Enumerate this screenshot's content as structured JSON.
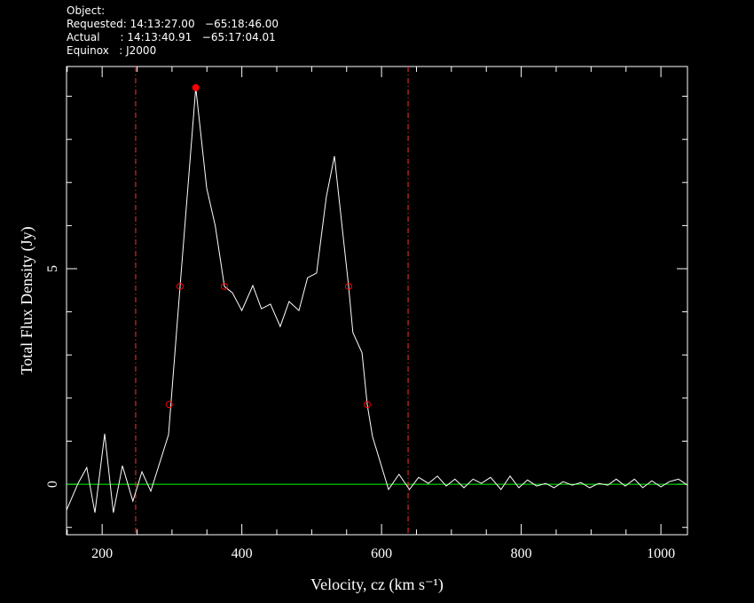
{
  "chart_data": {
    "type": "line",
    "header": [
      "Object:",
      "Requested: 14:13:27.00   −65:18:46.00",
      "Actual      : 14:13:40.91   −65:17:04.01",
      "Equinox   : J2000"
    ],
    "xlabel": "Velocity, cz (km s⁻¹)",
    "ylabel": "Total Flux Density (Jy)",
    "x": [
      149,
      165.5,
      178,
      189.6,
      203.6,
      216,
      229,
      244,
      257,
      269.6,
      295,
      311.5,
      334,
      349.7,
      362,
      375,
      386.5,
      400,
      415.7,
      428,
      441,
      455,
      467.7,
      481.7,
      494,
      507,
      521,
      532.5,
      552.8,
      559,
      572,
      579.5,
      587,
      610,
      625,
      640,
      653,
      667,
      680,
      692.5,
      705,
      718,
      731,
      743,
      756,
      771,
      784,
      796.6,
      809,
      822,
      835,
      847,
      860,
      873,
      885.5,
      898,
      911,
      924,
      936,
      949,
      962,
      974,
      987,
      1000,
      1012,
      1025,
      1038
    ],
    "values": [
      -0.6,
      0.02,
      0.39,
      -0.66,
      1.17,
      -0.66,
      0.43,
      -0.39,
      0.29,
      -0.16,
      1.15,
      4.59,
      9.2,
      6.87,
      5.99,
      4.59,
      4.44,
      4.03,
      4.61,
      4.07,
      4.18,
      3.66,
      4.24,
      4.03,
      4.79,
      4.9,
      6.67,
      7.61,
      4.59,
      3.52,
      3.05,
      1.85,
      1.11,
      -0.12,
      0.23,
      -0.12,
      0.16,
      0.02,
      0.19,
      -0.04,
      0.12,
      -0.08,
      0.12,
      0.02,
      0.16,
      -0.12,
      0.19,
      -0.08,
      0.1,
      -0.04,
      0.02,
      -0.08,
      0.06,
      -0.02,
      0.04,
      -0.08,
      0.02,
      -0.02,
      0.12,
      -0.04,
      0.12,
      -0.08,
      0.08,
      -0.06,
      0.06,
      0.12,
      -0.02
    ],
    "color": "#ffffff",
    "peak": {
      "x": 334,
      "y": 9.2,
      "color": "#ff0000"
    },
    "width_points": {
      "x": [
        296,
        311.5,
        375,
        552.8,
        579.5
      ],
      "values": [
        1.85,
        4.59,
        4.59,
        4.59,
        1.85
      ],
      "color": "#ff0000"
    },
    "vlines": {
      "x": [
        248,
        638
      ],
      "color": "#ff3030"
    },
    "baseline": {
      "value": 0,
      "color": "#00ff00"
    },
    "xlim": [
      149,
      1038
    ],
    "ylim": [
      -1.17,
      9.69
    ],
    "xticks": [
      200,
      400,
      600,
      800,
      1000
    ],
    "yticks": [
      0,
      5
    ],
    "xminorticks": [
      150,
      250,
      300,
      350,
      450,
      500,
      550,
      650,
      700,
      750,
      850,
      900,
      950
    ],
    "yminorticks": [
      -1,
      1,
      2,
      3,
      4,
      6,
      7,
      8,
      9
    ]
  }
}
